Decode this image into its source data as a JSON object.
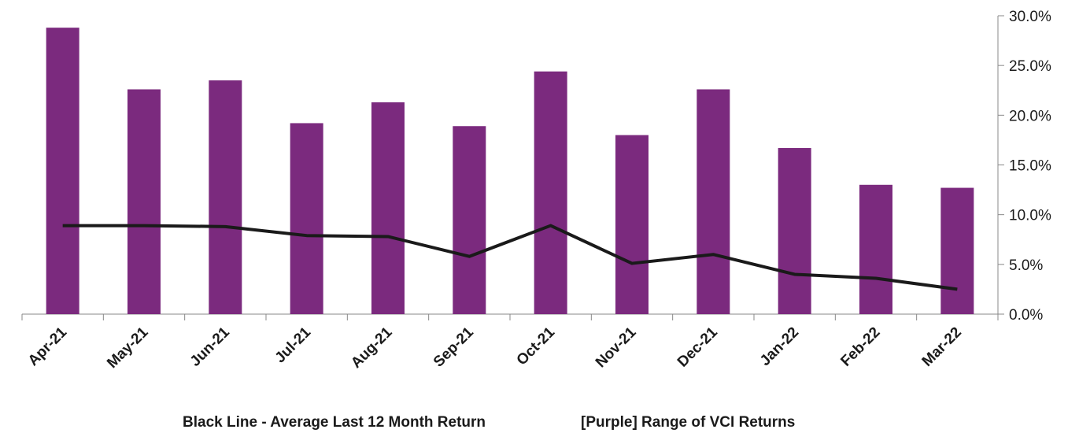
{
  "chart_data": {
    "type": "bar",
    "categories": [
      "Apr-21",
      "May-21",
      "Jun-21",
      "Jul-21",
      "Aug-21",
      "Sep-21",
      "Oct-21",
      "Nov-21",
      "Dec-21",
      "Jan-22",
      "Feb-22",
      "Mar-22"
    ],
    "series": [
      {
        "name": "[Purple] Range of VCI Returns",
        "type": "bar",
        "color": "#7b2a7e",
        "values": [
          28.8,
          22.6,
          23.5,
          19.2,
          21.3,
          18.9,
          24.4,
          18.0,
          22.6,
          16.7,
          13.0,
          12.7
        ]
      },
      {
        "name": "Black Line - Average Last 12 Month Return",
        "type": "line",
        "color": "#1a1a1a",
        "values": [
          8.9,
          8.9,
          8.8,
          7.9,
          7.8,
          5.8,
          8.9,
          5.1,
          6.0,
          4.0,
          3.6,
          2.5
        ]
      }
    ],
    "ylim": [
      0,
      30
    ],
    "yticks": [
      {
        "value": 0,
        "label": "0.0%"
      },
      {
        "value": 5,
        "label": "5.0%"
      },
      {
        "value": 10,
        "label": "10.0%"
      },
      {
        "value": 15,
        "label": "15.0%"
      },
      {
        "value": 20,
        "label": "20.0%"
      },
      {
        "value": 25,
        "label": "25.0%"
      },
      {
        "value": 30,
        "label": "30.0%"
      }
    ],
    "legend": "bottom"
  }
}
